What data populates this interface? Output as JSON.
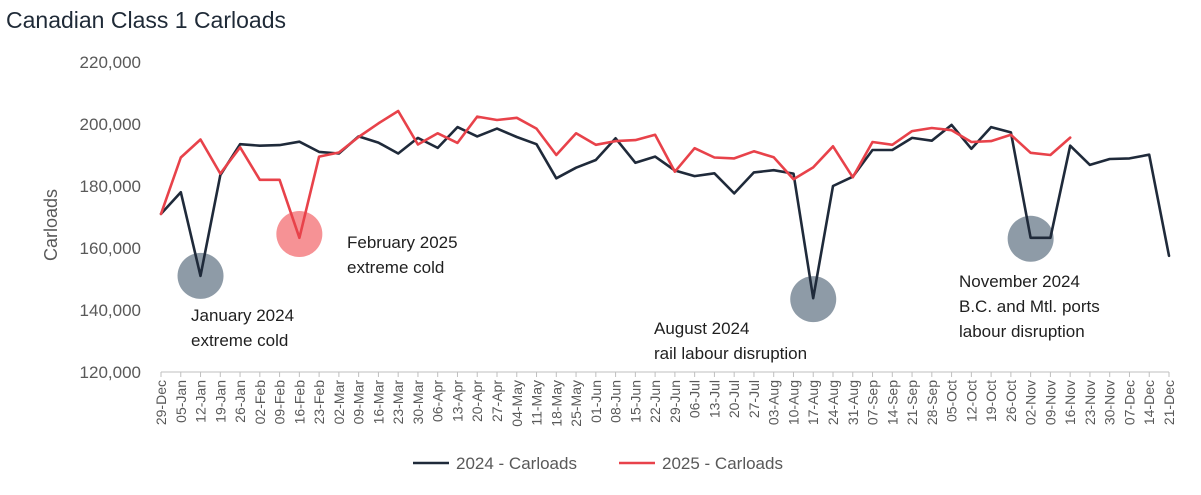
{
  "chart_data": {
    "type": "line",
    "title": "Canadian Class 1 Carloads",
    "ylabel": "Carloads",
    "xlabel": "",
    "ylim": [
      120000,
      220000
    ],
    "yticks": [
      120000,
      140000,
      160000,
      180000,
      200000,
      220000
    ],
    "ytick_labels": [
      "120,000",
      "140,000",
      "160,000",
      "180,000",
      "200,000",
      "220,000"
    ],
    "grid": false,
    "legend_position": "bottom",
    "categories": [
      "29-Dec",
      "05-Jan",
      "12-Jan",
      "19-Jan",
      "26-Jan",
      "02-Feb",
      "09-Feb",
      "16-Feb",
      "23-Feb",
      "02-Mar",
      "09-Mar",
      "16-Mar",
      "23-Mar",
      "30-Mar",
      "06-Apr",
      "13-Apr",
      "20-Apr",
      "27-Apr",
      "04-May",
      "11-May",
      "18-May",
      "25-May",
      "01-Jun",
      "08-Jun",
      "15-Jun",
      "22-Jun",
      "29-Jun",
      "06-Jul",
      "13-Jul",
      "20-Jul",
      "27-Jul",
      "03-Aug",
      "10-Aug",
      "17-Aug",
      "24-Aug",
      "31-Aug",
      "07-Sep",
      "14-Sep",
      "21-Sep",
      "28-Sep",
      "05-Oct",
      "12-Oct",
      "19-Oct",
      "26-Oct",
      "02-Nov",
      "09-Nov",
      "16-Nov",
      "23-Nov",
      "30-Nov",
      "07-Dec",
      "14-Dec",
      "21-Dec"
    ],
    "series": [
      {
        "name": "2024 - Carloads",
        "color": "#1f2a3a",
        "values": [
          171000,
          178000,
          151000,
          183500,
          193500,
          193000,
          193200,
          194300,
          191000,
          190500,
          196000,
          194000,
          190500,
          195500,
          192300,
          199000,
          196000,
          198500,
          195800,
          193500,
          182500,
          185900,
          188400,
          195400,
          187500,
          189500,
          185000,
          183200,
          184100,
          177600,
          184400,
          185100,
          184000,
          143800,
          180000,
          183000,
          191600,
          191600,
          195500,
          194600,
          199700,
          192000,
          199000,
          197300,
          163300,
          163300,
          193000,
          186800,
          188700,
          188900,
          190100,
          157500
        ]
      },
      {
        "name": "2025 - Carloads",
        "color": "#e8424a",
        "values": [
          171000,
          189200,
          195000,
          184000,
          192500,
          182000,
          182000,
          163300,
          189500,
          190800,
          195800,
          200200,
          204200,
          193400,
          197000,
          193900,
          202400,
          201300,
          202000,
          198500,
          190000,
          197000,
          193300,
          194500,
          194800,
          196500,
          184600,
          192200,
          189200,
          188900,
          191200,
          189300,
          182200,
          186000,
          192800,
          182800,
          194200,
          193300,
          197700,
          198700,
          198000,
          194200,
          194500,
          196500,
          190700,
          190000,
          195600,
          null,
          null,
          null,
          null,
          null
        ]
      }
    ],
    "annotations": [
      {
        "lines": [
          "January 2024",
          "extreme cold"
        ],
        "at": "12-Jan",
        "value": 151000,
        "color": "#7a8998"
      },
      {
        "lines": [
          "February 2025",
          "extreme cold"
        ],
        "at": "16-Feb",
        "value": 164500,
        "color": "#f47f83"
      },
      {
        "lines": [
          "August 2024",
          "rail labour disruption"
        ],
        "at": "17-Aug",
        "value": 143500,
        "color": "#7a8998"
      },
      {
        "lines": [
          "November 2024",
          "B.C. and Mtl. ports",
          "labour disruption"
        ],
        "at": "02-Nov",
        "value": 163000,
        "color": "#7a8998"
      }
    ]
  }
}
